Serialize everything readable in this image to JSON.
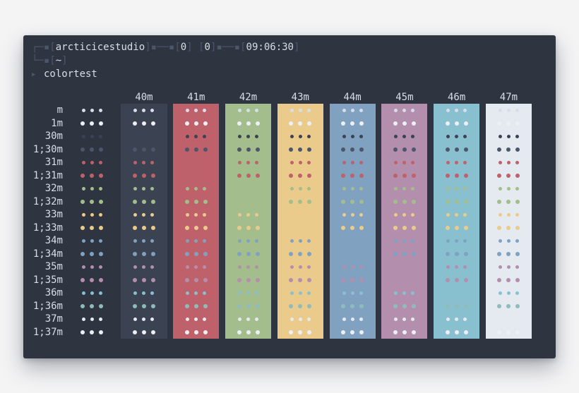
{
  "page": {
    "background": "#f4f4f5"
  },
  "terminal": {
    "colors": {
      "background": "#2e3440",
      "frame": "#4c566a",
      "text": "#d8dee9"
    },
    "prompt": {
      "line1": [
        {
          "text": "┌─▪",
          "role": "frame"
        },
        {
          "text": "[",
          "role": "bracket"
        },
        {
          "text": "arcticicestudio",
          "role": "text"
        },
        {
          "text": "]",
          "role": "bracket"
        },
        {
          "text": "▪──▪",
          "role": "frame"
        },
        {
          "text": "[",
          "role": "bracket"
        },
        {
          "text": "0",
          "role": "text"
        },
        {
          "text": "]",
          "role": "bracket"
        },
        {
          "text": " ",
          "role": "frame"
        },
        {
          "text": "[",
          "role": "bracket"
        },
        {
          "text": "0",
          "role": "text"
        },
        {
          "text": "]",
          "role": "bracket"
        },
        {
          "text": "▪──▪",
          "role": "frame"
        },
        {
          "text": "[",
          "role": "bracket"
        },
        {
          "text": "09:06:30",
          "role": "text"
        },
        {
          "text": "]",
          "role": "bracket"
        }
      ],
      "line2": [
        {
          "text": "└─▪",
          "role": "frame"
        },
        {
          "text": "[",
          "role": "bracket"
        },
        {
          "text": "~",
          "role": "text"
        },
        {
          "text": "]",
          "role": "bracket"
        }
      ],
      "command_marker": "▶",
      "command": "colortest"
    },
    "colortest": {
      "cell_glyph": "•••",
      "columns": [
        {
          "label": "",
          "bg": ""
        },
        {
          "label": "40m",
          "bg": "#3b4252"
        },
        {
          "label": "41m",
          "bg": "#bf616a"
        },
        {
          "label": "42m",
          "bg": "#a3be8c"
        },
        {
          "label": "43m",
          "bg": "#ebcb8b"
        },
        {
          "label": "44m",
          "bg": "#81a1c1"
        },
        {
          "label": "45m",
          "bg": "#b48ead"
        },
        {
          "label": "46m",
          "bg": "#88c0d0"
        },
        {
          "label": "47m",
          "bg": "#e5e9f0"
        }
      ],
      "rows": [
        {
          "label": "m",
          "color": "#d8dee9",
          "bold": false
        },
        {
          "label": "1m",
          "color": "#eceff4",
          "bold": true
        },
        {
          "label": "30m",
          "color": "#3b4252",
          "bold": false
        },
        {
          "label": "1;30m",
          "color": "#4c566a",
          "bold": true
        },
        {
          "label": "31m",
          "color": "#bf616a",
          "bold": false
        },
        {
          "label": "1;31m",
          "color": "#bf616a",
          "bold": true
        },
        {
          "label": "32m",
          "color": "#a3be8c",
          "bold": false
        },
        {
          "label": "1;32m",
          "color": "#a3be8c",
          "bold": true
        },
        {
          "label": "33m",
          "color": "#ebcb8b",
          "bold": false
        },
        {
          "label": "1;33m",
          "color": "#ebcb8b",
          "bold": true
        },
        {
          "label": "34m",
          "color": "#81a1c1",
          "bold": false
        },
        {
          "label": "1;34m",
          "color": "#81a1c1",
          "bold": true
        },
        {
          "label": "35m",
          "color": "#b48ead",
          "bold": false
        },
        {
          "label": "1;35m",
          "color": "#b48ead",
          "bold": true
        },
        {
          "label": "36m",
          "color": "#88c0d0",
          "bold": false
        },
        {
          "label": "1;36m",
          "color": "#8fbcbb",
          "bold": true
        },
        {
          "label": "37m",
          "color": "#e5e9f0",
          "bold": false
        },
        {
          "label": "1;37m",
          "color": "#eceff4",
          "bold": true
        }
      ]
    }
  }
}
